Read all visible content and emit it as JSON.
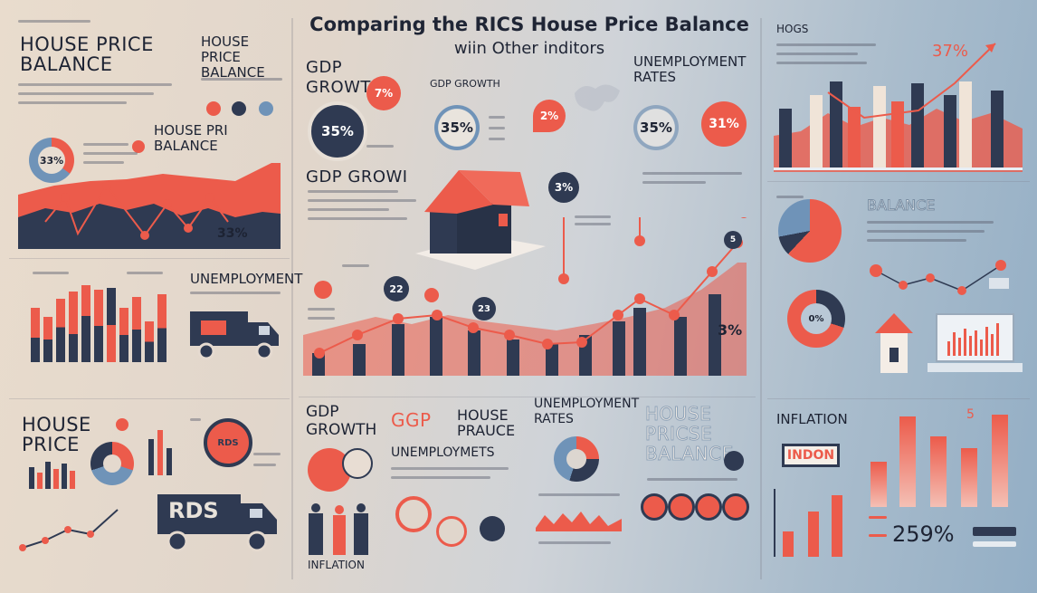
{
  "title": "Comparing the RICS House Price Balance",
  "subtitle": "wiin Other inditors",
  "labels": {
    "house_price_balance_tl": "HOUSE PRICE BALANCE",
    "house_price_balance_mid": "HOUSE PRI BALANCE",
    "pct_33_left": "33%",
    "pct_33_chart": "33%",
    "unemployment_left": "UNEMPLOYMENT",
    "gdp_growth_1": "GDP GROWTH",
    "gdp_growth_small": "GDP GROWTH",
    "unemployment_rates_top": "UNEMPLOYMENT RATES",
    "pct_35_a": "35%",
    "pct_35_b": "35%",
    "pct_35_c": "35%",
    "pct_7": "7%",
    "pct_2": "2%",
    "pct_31": "31%",
    "gdp_grow": "GDP GROWI",
    "pct_3": "3%",
    "num_22": "22",
    "num_23": "23",
    "pct_3b": "3%",
    "hogs": "HOGS",
    "pct_37": "37%",
    "balance_right": "BALANCE",
    "pct_0_donut": "0%",
    "house_price_bl": "HOUSE PRICE",
    "rds": "RDS",
    "rds_small": "RDS",
    "gdp_growth_bottom": "GDP GROWTH",
    "ggp": "GGP",
    "house_prauce": "HOUSE PRAUCE",
    "unemploymets": "UNEMPLOYMETS",
    "inflation_bottom": "INFLATION",
    "unemployment_rates_bottom": "UNEMPLOYMENT RATES",
    "house_pricse_balance": "HOUSE PRICSE BALANCE",
    "inflation_right": "INFLATION",
    "indon": "INDON",
    "pct_259": "259%",
    "num_5": "5"
  },
  "colors": {
    "navy": "#2f3a52",
    "coral": "#ec5b4b",
    "steel_blue": "#6f93b8",
    "cream": "#f2e7dc"
  },
  "icons": [
    "house-icon",
    "truck-icon",
    "laptop-icon",
    "people-icon",
    "map-pin-icon",
    "world-map-icon",
    "trend-arrow-icon"
  ]
}
